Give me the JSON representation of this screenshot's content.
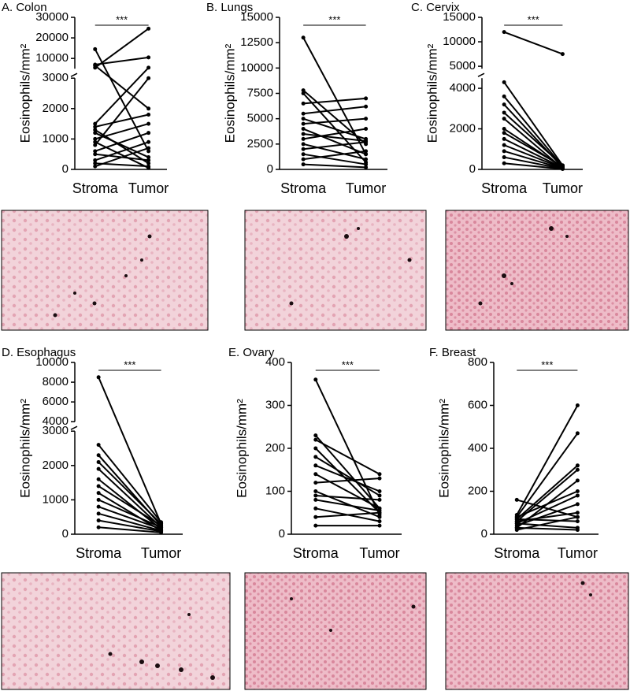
{
  "chart_data": [
    {
      "type": "paired",
      "title": "A. Colon",
      "y_label": "Eosinophils/mm²",
      "categories": [
        "Stroma",
        "Tumor"
      ],
      "significance": "***",
      "color": "#000000",
      "segments": [
        {
          "ylim": [
            0,
            3000
          ],
          "yticks": [
            0,
            1000,
            2000,
            3000
          ]
        },
        {
          "ylim": [
            5000,
            30000
          ],
          "yticks": [
            10000,
            20000,
            30000
          ]
        }
      ],
      "pairs": [
        [
          5500,
          24500
        ],
        [
          14500,
          600
        ],
        [
          7000,
          10500
        ],
        [
          6500,
          2000
        ],
        [
          1500,
          5500
        ],
        [
          1400,
          1800
        ],
        [
          1300,
          200
        ],
        [
          1000,
          1500
        ],
        [
          800,
          3000
        ],
        [
          600,
          1200
        ],
        [
          500,
          300
        ],
        [
          300,
          900
        ],
        [
          200,
          100
        ],
        [
          1200,
          400
        ],
        [
          900,
          50
        ],
        [
          100,
          700
        ]
      ]
    },
    {
      "type": "paired",
      "title": "B. Lungs",
      "y_label": "Eosinophils/mm²",
      "categories": [
        "Stroma",
        "Tumor"
      ],
      "significance": "***",
      "color": "#000000",
      "segments": [
        {
          "ylim": [
            0,
            15000
          ],
          "yticks": [
            0,
            2500,
            5000,
            7500,
            10000,
            12500,
            15000
          ]
        }
      ],
      "pairs": [
        [
          13000,
          1500
        ],
        [
          7800,
          2500
        ],
        [
          7500,
          700
        ],
        [
          6500,
          7000
        ],
        [
          5500,
          6200
        ],
        [
          5000,
          3000
        ],
        [
          4500,
          5000
        ],
        [
          4000,
          1500
        ],
        [
          3500,
          2800
        ],
        [
          3000,
          4000
        ],
        [
          2500,
          1000
        ],
        [
          2000,
          2700
        ],
        [
          1500,
          500
        ],
        [
          1000,
          1800
        ],
        [
          500,
          200
        ]
      ]
    },
    {
      "type": "paired",
      "title": "C. Cervix",
      "y_label": "Eosinophils/mm²",
      "categories": [
        "Stroma",
        "Tumor"
      ],
      "significance": "***",
      "color": "#000000",
      "segments": [
        {
          "ylim": [
            0,
            4500
          ],
          "yticks": [
            0,
            2000,
            4000
          ]
        },
        {
          "ylim": [
            4500,
            15000
          ],
          "yticks": [
            5000,
            10000,
            15000
          ]
        }
      ],
      "pairs": [
        [
          12000,
          7500
        ],
        [
          4300,
          200
        ],
        [
          3600,
          150
        ],
        [
          3200,
          100
        ],
        [
          2800,
          200
        ],
        [
          2500,
          50
        ],
        [
          2000,
          100
        ],
        [
          1800,
          150
        ],
        [
          1500,
          80
        ],
        [
          1200,
          60
        ],
        [
          900,
          40
        ],
        [
          600,
          30
        ],
        [
          300,
          20
        ]
      ]
    },
    {
      "type": "paired",
      "title": "D. Esophagus",
      "y_label": "Eosinophils/mm²",
      "categories": [
        "Stroma",
        "Tumor"
      ],
      "significance": "***",
      "color": "#000000",
      "segments": [
        {
          "ylim": [
            0,
            3000
          ],
          "yticks": [
            0,
            1000,
            2000,
            3000
          ]
        },
        {
          "ylim": [
            4000,
            10000
          ],
          "yticks": [
            4000,
            6000,
            8000,
            10000
          ]
        }
      ],
      "pairs": [
        [
          8500,
          300
        ],
        [
          2600,
          350
        ],
        [
          2300,
          250
        ],
        [
          2100,
          300
        ],
        [
          1900,
          200
        ],
        [
          1600,
          150
        ],
        [
          1400,
          250
        ],
        [
          1200,
          100
        ],
        [
          1000,
          200
        ],
        [
          800,
          150
        ],
        [
          600,
          100
        ],
        [
          400,
          80
        ],
        [
          200,
          50
        ]
      ]
    },
    {
      "type": "paired",
      "title": "E. Ovary",
      "y_label": "Eosinophils/mm²",
      "categories": [
        "Stroma",
        "Tumor"
      ],
      "significance": "***",
      "color": "#000000",
      "segments": [
        {
          "ylim": [
            0,
            400
          ],
          "yticks": [
            0,
            100,
            200,
            300,
            400
          ]
        }
      ],
      "pairs": [
        [
          360,
          45
        ],
        [
          230,
          60
        ],
        [
          220,
          140
        ],
        [
          200,
          50
        ],
        [
          180,
          90
        ],
        [
          160,
          100
        ],
        [
          140,
          60
        ],
        [
          120,
          130
        ],
        [
          100,
          40
        ],
        [
          90,
          80
        ],
        [
          80,
          55
        ],
        [
          60,
          30
        ],
        [
          40,
          50
        ],
        [
          20,
          20
        ]
      ]
    },
    {
      "type": "paired",
      "title": "F. Breast",
      "y_label": "Eosinophils/mm²",
      "categories": [
        "Stroma",
        "Tumor"
      ],
      "significance": "***",
      "color": "#000000",
      "segments": [
        {
          "ylim": [
            0,
            800
          ],
          "yticks": [
            0,
            200,
            400,
            600,
            800
          ]
        }
      ],
      "pairs": [
        [
          160,
          80
        ],
        [
          90,
          600
        ],
        [
          80,
          470
        ],
        [
          70,
          320
        ],
        [
          60,
          300
        ],
        [
          80,
          200
        ],
        [
          50,
          180
        ],
        [
          40,
          140
        ],
        [
          60,
          100
        ],
        [
          30,
          250
        ],
        [
          20,
          80
        ],
        [
          70,
          60
        ],
        [
          50,
          30
        ],
        [
          30,
          20
        ]
      ]
    }
  ]
}
